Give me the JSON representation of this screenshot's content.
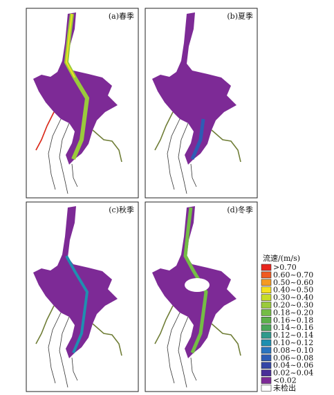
{
  "panels": [
    {
      "label": "(a)春季"
    },
    {
      "label": "(b)夏季"
    },
    {
      "label": "(c)秋季"
    },
    {
      "label": "(d)冬季"
    }
  ],
  "legend": {
    "title": "流速/(m/s)",
    "items": [
      {
        "label": ">0.70",
        "color": "#e8241c"
      },
      {
        "label": "0.60~0.70",
        "color": "#f05a22"
      },
      {
        "label": "0.50~0.60",
        "color": "#f59a23"
      },
      {
        "label": "0.40~0.50",
        "color": "#f5e020"
      },
      {
        "label": "0.30~0.40",
        "color": "#c8dc28"
      },
      {
        "label": "0.20~0.30",
        "color": "#9acb3c"
      },
      {
        "label": "0.18~0.20",
        "color": "#74bd45"
      },
      {
        "label": "0.16~0.18",
        "color": "#5cb04a"
      },
      {
        "label": "0.14~0.16",
        "color": "#4ba65a"
      },
      {
        "label": "0.12~0.14",
        "color": "#2f9a8c"
      },
      {
        "label": "0.10~0.12",
        "color": "#1f8fb0"
      },
      {
        "label": "0.08~0.10",
        "color": "#2a74c0"
      },
      {
        "label": "0.06~0.08",
        "color": "#2e5cb4"
      },
      {
        "label": "0.04~0.06",
        "color": "#3446a6"
      },
      {
        "label": "0.02~0.04",
        "color": "#4a2f98"
      },
      {
        "label": "<0.02",
        "color": "#7d2a96"
      },
      {
        "label": "未检出",
        "color": "#ffffff"
      }
    ]
  }
}
